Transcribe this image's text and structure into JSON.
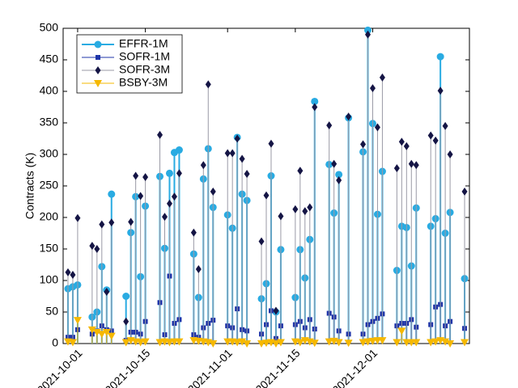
{
  "chart_data": {
    "type": "stem",
    "y_label": "Contracts (K)",
    "x": [
      "2021-09-29",
      "2021-09-30",
      "2021-10-01",
      "2021-10-04",
      "2021-10-05",
      "2021-10-06",
      "2021-10-07",
      "2021-10-08",
      "2021-10-11",
      "2021-10-12",
      "2021-10-13",
      "2021-10-14",
      "2021-10-15",
      "2021-10-18",
      "2021-10-19",
      "2021-10-20",
      "2021-10-21",
      "2021-10-22",
      "2021-10-25",
      "2021-10-26",
      "2021-10-27",
      "2021-10-28",
      "2021-10-29",
      "2021-11-01",
      "2021-11-02",
      "2021-11-03",
      "2021-11-04",
      "2021-11-05",
      "2021-11-08",
      "2021-11-09",
      "2021-11-10",
      "2021-11-11",
      "2021-11-12",
      "2021-11-15",
      "2021-11-16",
      "2021-11-17",
      "2021-11-18",
      "2021-11-19",
      "2021-11-22",
      "2021-11-23",
      "2021-11-24",
      "2021-11-26",
      "2021-11-29",
      "2021-11-30",
      "2021-12-01",
      "2021-12-02",
      "2021-12-03",
      "2021-12-06",
      "2021-12-07",
      "2021-12-08",
      "2021-12-09",
      "2021-12-10",
      "2021-12-13",
      "2021-12-14",
      "2021-12-15",
      "2021-12-16",
      "2021-12-17",
      "2021-12-20"
    ],
    "series": [
      {
        "name": "EFFR-1M",
        "color": "#29abe2",
        "stem_color": "#29abe2",
        "marker": "circle",
        "values": [
          87,
          90,
          93,
          42,
          50,
          122,
          85,
          237,
          75,
          176,
          233,
          106,
          218,
          265,
          151,
          270,
          303,
          307,
          142,
          73,
          261,
          309,
          216,
          204,
          183,
          327,
          237,
          227,
          71,
          95,
          266,
          50,
          149,
          73,
          149,
          104,
          165,
          384,
          284,
          207,
          268,
          358,
          304,
          497,
          349,
          205,
          273,
          116,
          186,
          184,
          123,
          215,
          186,
          198,
          455,
          175,
          208,
          103
        ]
      },
      {
        "name": "SOFR-1M",
        "color": "#1f35a8",
        "stem_color": "#1f35a8",
        "marker": "square",
        "values": [
          10,
          10,
          22,
          15,
          20,
          28,
          22,
          20,
          5,
          18,
          18,
          15,
          35,
          65,
          14,
          107,
          32,
          38,
          14,
          10,
          25,
          32,
          37,
          28,
          25,
          55,
          22,
          20,
          15,
          30,
          52,
          8,
          28,
          30,
          35,
          25,
          38,
          23,
          48,
          42,
          20,
          15,
          15,
          30,
          35,
          40,
          47,
          28,
          32,
          32,
          38,
          26,
          30,
          58,
          62,
          28,
          35,
          24
        ]
      },
      {
        "name": "SOFR-3M",
        "color": "#151545",
        "stem_color": "#9a9aa6",
        "marker": "diamond",
        "values": [
          113,
          109,
          199,
          155,
          150,
          189,
          82,
          192,
          35,
          193,
          266,
          234,
          264,
          331,
          201,
          222,
          233,
          270,
          176,
          118,
          283,
          411,
          241,
          302,
          302,
          325,
          293,
          269,
          162,
          235,
          317,
          52,
          202,
          213,
          274,
          210,
          216,
          375,
          346,
          285,
          259,
          360,
          316,
          490,
          405,
          343,
          422,
          278,
          320,
          313,
          285,
          283,
          330,
          322,
          401,
          345,
          300,
          241
        ]
      },
      {
        "name": "BSBY-3M",
        "color": "#f5b800",
        "stem_color": "#f5b800",
        "marker": "triangle-down",
        "values": [
          3,
          2,
          37,
          22,
          18,
          15,
          18,
          12,
          2,
          5,
          3,
          2,
          3,
          2,
          3,
          2,
          3,
          3,
          5,
          4,
          3,
          2,
          0,
          3,
          3,
          2,
          3,
          0,
          0,
          1,
          2,
          0,
          2,
          3,
          2,
          5,
          3,
          1,
          3,
          4,
          2,
          1,
          2,
          3,
          4,
          5,
          5,
          2,
          20,
          2,
          2,
          2,
          2,
          3,
          5,
          3,
          0,
          2
        ]
      }
    ],
    "xlim": [
      "2021-09-28",
      "2021-12-21"
    ],
    "xticks": [
      "2021-10-01",
      "2021-10-15",
      "2021-11-01",
      "2021-11-15",
      "2021-12-01"
    ],
    "ylim": [
      0,
      500
    ],
    "yticks": [
      0,
      50,
      100,
      150,
      200,
      250,
      300,
      350,
      400,
      450,
      500
    ],
    "grid": false,
    "legend": "upper-left"
  }
}
